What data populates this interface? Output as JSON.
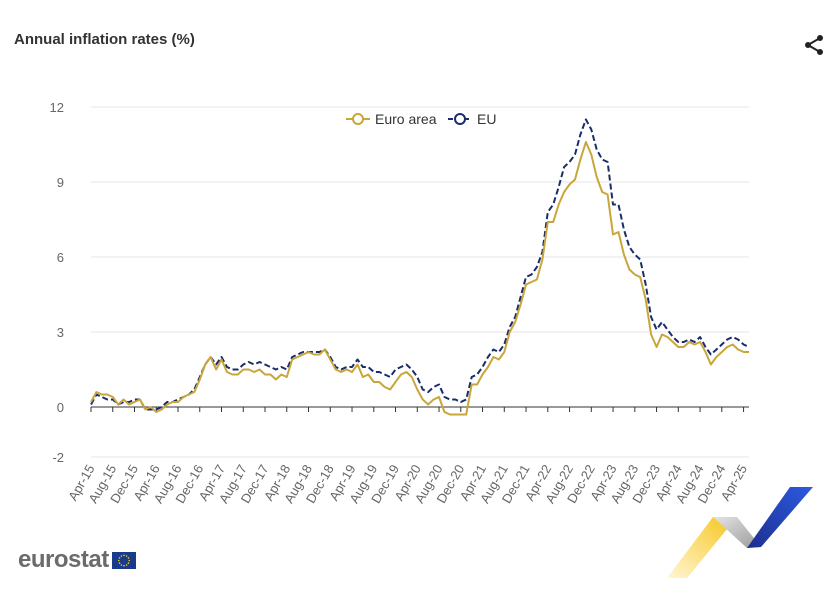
{
  "header": {
    "title": "Annual inflation rates (%)",
    "share_icon": "share-icon"
  },
  "footer": {
    "logo_text": "eurostat",
    "flag_icon": "eu-flag-icon"
  },
  "chart_data": {
    "type": "line",
    "title": "Annual inflation rates (%)",
    "xlabel": "",
    "ylabel": "",
    "ylim": [
      -2,
      12
    ],
    "yticks": [
      -2,
      0,
      3,
      6,
      9,
      12
    ],
    "grid": true,
    "legend_position": "top-center",
    "x_tick_labels": [
      "Apr-15",
      "Aug-15",
      "Dec-15",
      "Apr-16",
      "Aug-16",
      "Dec-16",
      "Apr-17",
      "Aug-17",
      "Dec-17",
      "Apr-18",
      "Aug-18",
      "Dec-18",
      "Apr-19",
      "Aug-19",
      "Dec-19",
      "Apr-20",
      "Aug-20",
      "Dec-20",
      "Apr-21",
      "Aug-21",
      "Dec-21",
      "Apr-22",
      "Aug-22",
      "Dec-22",
      "Apr-23",
      "Aug-23",
      "Dec-23",
      "Apr-24",
      "Aug-24",
      "Dec-24",
      "Apr-25"
    ],
    "x_start": "2015-04",
    "x_end": "2025-04",
    "series": [
      {
        "name": "Euro area",
        "color": "#c9a63a",
        "style": "solid",
        "values": [
          0.2,
          0.6,
          0.5,
          0.5,
          0.4,
          0.1,
          0.3,
          0.1,
          0.2,
          0.3,
          -0.1,
          0.0,
          -0.2,
          -0.1,
          0.1,
          0.2,
          0.2,
          0.4,
          0.5,
          0.6,
          1.1,
          1.7,
          2.0,
          1.5,
          1.9,
          1.4,
          1.3,
          1.3,
          1.5,
          1.5,
          1.4,
          1.5,
          1.3,
          1.3,
          1.1,
          1.3,
          1.2,
          1.9,
          2.0,
          2.1,
          2.2,
          2.1,
          2.1,
          2.3,
          1.9,
          1.5,
          1.4,
          1.5,
          1.4,
          1.7,
          1.2,
          1.3,
          1.0,
          1.0,
          0.8,
          0.7,
          1.0,
          1.3,
          1.4,
          1.2,
          0.7,
          0.3,
          0.1,
          0.3,
          0.4,
          -0.2,
          -0.3,
          -0.3,
          -0.3,
          -0.3,
          0.9,
          0.9,
          1.3,
          1.6,
          2.0,
          1.9,
          2.2,
          3.0,
          3.4,
          4.1,
          4.9,
          5.0,
          5.1,
          5.9,
          7.4,
          7.4,
          8.1,
          8.6,
          8.9,
          9.1,
          9.9,
          10.6,
          10.1,
          9.2,
          8.6,
          8.5,
          6.9,
          7.0,
          6.1,
          5.5,
          5.3,
          5.2,
          4.3,
          2.9,
          2.4,
          2.9,
          2.8,
          2.6,
          2.4,
          2.4,
          2.6,
          2.5,
          2.6,
          2.2,
          1.7,
          2.0,
          2.2,
          2.4,
          2.5,
          2.3,
          2.2,
          2.2
        ]
      },
      {
        "name": "EU",
        "color": "#1a2d6b",
        "style": "dashed",
        "values": [
          0.1,
          0.5,
          0.4,
          0.3,
          0.3,
          0.1,
          0.2,
          0.2,
          0.3,
          0.3,
          -0.1,
          -0.1,
          -0.1,
          0.0,
          0.2,
          0.2,
          0.3,
          0.4,
          0.5,
          0.7,
          1.2,
          1.7,
          2.0,
          1.7,
          2.0,
          1.6,
          1.5,
          1.5,
          1.7,
          1.8,
          1.7,
          1.8,
          1.7,
          1.6,
          1.5,
          1.6,
          1.5,
          2.0,
          2.1,
          2.2,
          2.2,
          2.2,
          2.2,
          2.3,
          2.0,
          1.6,
          1.5,
          1.6,
          1.6,
          1.9,
          1.6,
          1.6,
          1.4,
          1.4,
          1.3,
          1.2,
          1.5,
          1.6,
          1.7,
          1.5,
          1.2,
          0.7,
          0.6,
          0.8,
          0.9,
          0.4,
          0.3,
          0.3,
          0.2,
          0.3,
          1.2,
          1.3,
          1.6,
          2.0,
          2.3,
          2.2,
          2.5,
          3.2,
          3.6,
          4.4,
          5.2,
          5.3,
          5.6,
          6.2,
          7.8,
          8.1,
          8.8,
          9.6,
          9.8,
          10.1,
          10.9,
          11.5,
          11.1,
          10.3,
          9.9,
          9.8,
          8.1,
          8.1,
          7.1,
          6.4,
          6.1,
          5.9,
          4.9,
          3.6,
          3.1,
          3.4,
          3.1,
          2.8,
          2.6,
          2.6,
          2.7,
          2.6,
          2.8,
          2.4,
          2.1,
          2.3,
          2.5,
          2.7,
          2.8,
          2.7,
          2.5,
          2.4
        ]
      }
    ]
  }
}
